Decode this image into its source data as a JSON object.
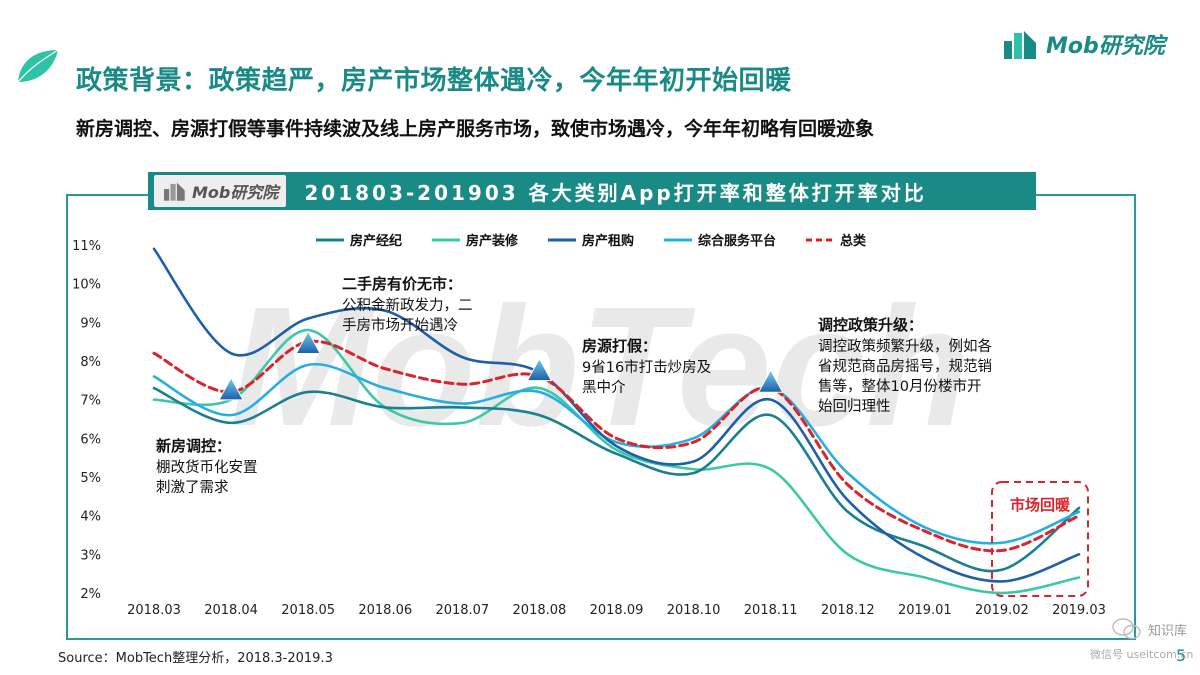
{
  "logo": {
    "text": "Mob研究院"
  },
  "title": "政策背景：政策趋严，房产市场整体遇冷，今年年初开始回暖",
  "subtitle": "新房调控、房源打假等事件持续波及线上房产服务市场，致使市场遇冷，今年年初略有回暖迹象",
  "banner": {
    "logo_text": "Mob研究院",
    "title": "201803-201903 各大类别App打开率和整体打开率对比"
  },
  "watermark": {
    "text": "MobTech"
  },
  "chart_data": {
    "type": "line",
    "categories": [
      "2018.03",
      "2018.04",
      "2018.05",
      "2018.06",
      "2018.07",
      "2018.08",
      "2018.09",
      "2018.10",
      "2018.11",
      "2018.12",
      "2019.01",
      "2019.02",
      "2019.03"
    ],
    "y_ticks": [
      "2%",
      "3%",
      "4%",
      "5%",
      "6%",
      "7%",
      "8%",
      "9%",
      "10%",
      "11%"
    ],
    "ylim": [
      2,
      11
    ],
    "grid": false,
    "legend_position": "top",
    "series": [
      {
        "name": "房产经纪",
        "color": "#1a7f8e",
        "dash": false,
        "values": [
          7.3,
          6.4,
          7.2,
          6.8,
          6.8,
          6.6,
          5.6,
          5.1,
          6.6,
          4.1,
          3.2,
          2.6,
          4.2
        ]
      },
      {
        "name": "房产装修",
        "color": "#3cc8a6",
        "dash": false,
        "values": [
          7.0,
          7.0,
          8.8,
          6.8,
          6.4,
          7.3,
          5.7,
          5.2,
          5.2,
          3.0,
          2.4,
          2.0,
          2.4
        ]
      },
      {
        "name": "房产租购",
        "color": "#1f5ea8",
        "dash": false,
        "values": [
          10.9,
          8.2,
          9.1,
          9.3,
          8.1,
          7.7,
          5.8,
          5.4,
          7.0,
          4.4,
          2.9,
          2.3,
          3.0
        ]
      },
      {
        "name": "综合服务平台",
        "color": "#27aee0",
        "dash": false,
        "values": [
          7.6,
          6.6,
          7.9,
          7.3,
          6.9,
          7.2,
          5.9,
          6.0,
          7.3,
          5.1,
          3.7,
          3.3,
          4.1
        ]
      },
      {
        "name": "总类",
        "color": "#d9242b",
        "dash": true,
        "values": [
          8.2,
          7.2,
          8.5,
          7.8,
          7.4,
          7.6,
          6.0,
          5.9,
          7.3,
          4.8,
          3.6,
          3.1,
          4.0
        ]
      }
    ],
    "markers": [
      {
        "category": "2018.04",
        "value": 7.2
      },
      {
        "category": "2018.05",
        "value": 8.4
      },
      {
        "category": "2018.08",
        "value": 7.7
      },
      {
        "category": "2018.11",
        "value": 7.4
      }
    ],
    "annotations": [
      {
        "id": "a1",
        "heading": "新房调控：",
        "lines": [
          "棚改货币化安置",
          "刺激了需求"
        ]
      },
      {
        "id": "a2",
        "heading": "二手房有价无市：",
        "lines": [
          "公积金新政发力，二",
          "手房市场开始遇冷"
        ]
      },
      {
        "id": "a3",
        "heading": "房源打假：",
        "lines": [
          "9省16市打击炒房及",
          "黑中介"
        ]
      },
      {
        "id": "a4",
        "heading": "调控政策升级：",
        "lines": [
          "调控政策频繁升级，例如各",
          "省规范商品房摇号，规范销",
          "售等，整体10月份楼市开",
          "始回归理性"
        ]
      }
    ],
    "highlight": {
      "label": "市场回暖",
      "categories": [
        "2019.03"
      ]
    }
  },
  "source": "Source：MobTech整理分析，2018.3-2019.3",
  "page_number": "5",
  "wechat_watermark": {
    "name": "知识库",
    "id": "微信号 useitcom.cn"
  }
}
